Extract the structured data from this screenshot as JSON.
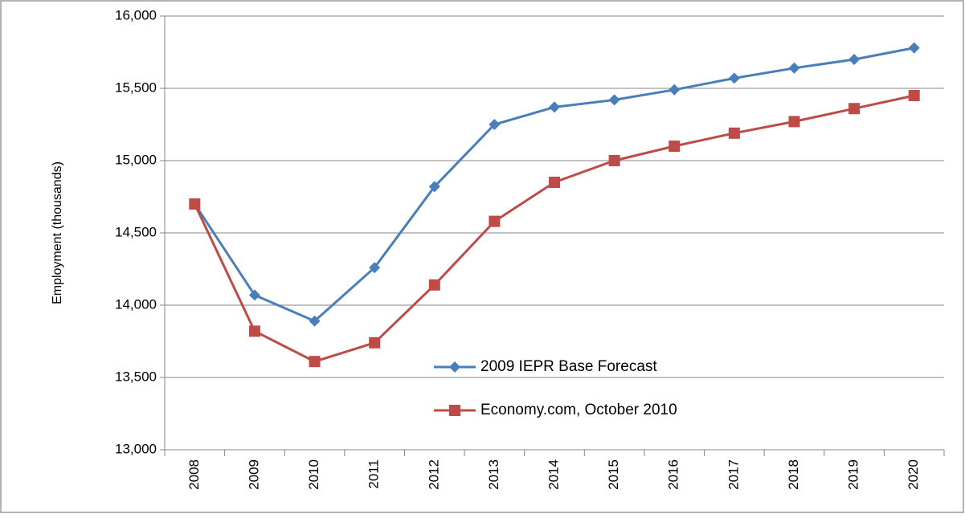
{
  "chart_data": {
    "type": "line",
    "y_label": "Employment (thousands)",
    "categories": [
      "2008",
      "2009",
      "2010",
      "2011",
      "2012",
      "2013",
      "2014",
      "2015",
      "2016",
      "2017",
      "2018",
      "2019",
      "2020"
    ],
    "series": [
      {
        "name": "2009 IEPR Base Forecast",
        "color": "#4a7ebb",
        "marker": "diamond",
        "values": [
          14700,
          14070,
          13890,
          14260,
          14820,
          15250,
          15370,
          15420,
          15490,
          15570,
          15640,
          15700,
          15780
        ]
      },
      {
        "name": "Economy.com, October 2010",
        "color": "#be4b48",
        "marker": "square",
        "values": [
          14700,
          13820,
          13610,
          13740,
          14140,
          14580,
          14850,
          15000,
          15100,
          15190,
          15270,
          15360,
          15450
        ]
      }
    ],
    "ylim": [
      13000,
      16000
    ],
    "yticks": [
      {
        "value": 13000,
        "label": "13,000"
      },
      {
        "value": 13500,
        "label": "13,500"
      },
      {
        "value": 14000,
        "label": "14,000"
      },
      {
        "value": 14500,
        "label": "14,500"
      },
      {
        "value": 15000,
        "label": "15,000"
      },
      {
        "value": 15500,
        "label": "15,500"
      },
      {
        "value": 16000,
        "label": "16,000"
      }
    ],
    "grid": true
  }
}
